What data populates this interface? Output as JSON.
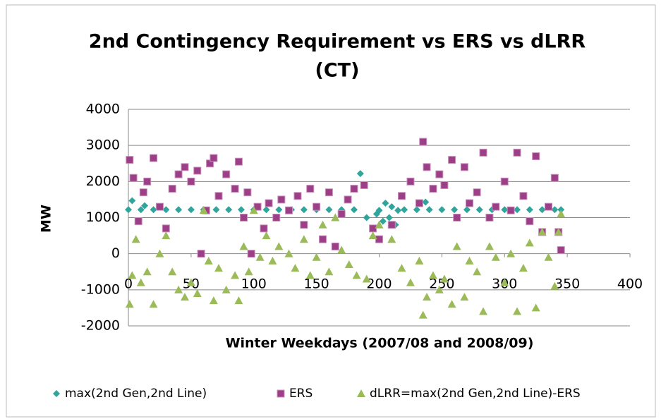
{
  "chart_data": {
    "type": "scatter",
    "title": "2nd Contingency Requirement vs ERS vs dLRR",
    "subtitle": "(CT)",
    "x_label": "Winter Weekdays (2007/08 and 2008/09)",
    "y_label": "MW",
    "xlim": [
      0,
      400
    ],
    "xticks": [
      0,
      50,
      100,
      150,
      200,
      250,
      300,
      350,
      400
    ],
    "ylim": [
      -2000,
      4000
    ],
    "yticks": [
      -2000,
      -1000,
      0,
      1000,
      2000,
      3000,
      4000
    ],
    "grid": true,
    "legend": "bottom",
    "series": [
      {
        "name": "max(2nd Gen,2nd Line)",
        "color": "#2fa59c",
        "marker": "diamond",
        "x": [
          0,
          3,
          10,
          13,
          20,
          30,
          40,
          50,
          60,
          70,
          80,
          90,
          100,
          110,
          120,
          130,
          140,
          150,
          160,
          170,
          180,
          185,
          190,
          195,
          198,
          200,
          203,
          205,
          208,
          210,
          213,
          215,
          220,
          230,
          237,
          240,
          250,
          260,
          270,
          280,
          290,
          300,
          310,
          320,
          330,
          340,
          345
        ],
        "values": [
          1220,
          1470,
          1220,
          1330,
          1220,
          1220,
          1220,
          1220,
          1220,
          1220,
          1220,
          1220,
          1220,
          1220,
          1220,
          1220,
          1220,
          1220,
          1220,
          1220,
          1220,
          2220,
          1000,
          700,
          1100,
          1200,
          900,
          1400,
          1000,
          1300,
          800,
          1200,
          1220,
          1220,
          1430,
          1220,
          1220,
          1220,
          1220,
          1220,
          1220,
          1220,
          1220,
          1220,
          1220,
          1220,
          1220
        ]
      },
      {
        "name": "ERS",
        "color": "#9c3f86",
        "marker": "square",
        "x": [
          1,
          4,
          8,
          12,
          15,
          20,
          25,
          30,
          35,
          40,
          45,
          50,
          55,
          58,
          62,
          65,
          68,
          72,
          78,
          85,
          88,
          92,
          95,
          98,
          103,
          108,
          112,
          118,
          122,
          128,
          135,
          140,
          145,
          150,
          155,
          160,
          165,
          170,
          175,
          180,
          188,
          195,
          200,
          210,
          218,
          225,
          232,
          235,
          238,
          243,
          248,
          252,
          258,
          262,
          268,
          272,
          278,
          283,
          288,
          293,
          300,
          305,
          310,
          315,
          320,
          325,
          330,
          335,
          340,
          343,
          345
        ],
        "values": [
          2600,
          2100,
          900,
          1700,
          2000,
          2650,
          1300,
          700,
          1800,
          2200,
          2400,
          2000,
          2300,
          0,
          1200,
          2500,
          2650,
          1600,
          2200,
          1800,
          2550,
          1000,
          1700,
          0,
          1300,
          700,
          1400,
          1000,
          1500,
          1200,
          1600,
          800,
          1800,
          1300,
          400,
          1700,
          200,
          1100,
          1500,
          1800,
          1900,
          700,
          400,
          800,
          1600,
          2000,
          1400,
          3100,
          2400,
          1800,
          2200,
          1900,
          2600,
          1000,
          2400,
          1400,
          1700,
          2800,
          1000,
          1300,
          2000,
          1200,
          2800,
          1600,
          900,
          2700,
          600,
          1300,
          2100,
          600,
          100
        ]
      },
      {
        "name": "dLRR=max(2nd Gen,2nd Line)-ERS",
        "color": "#9bbb59",
        "marker": "triangle",
        "x": [
          1,
          3,
          6,
          10,
          15,
          20,
          25,
          30,
          35,
          40,
          45,
          50,
          55,
          60,
          64,
          68,
          72,
          78,
          85,
          88,
          92,
          96,
          100,
          105,
          110,
          115,
          120,
          128,
          133,
          140,
          145,
          150,
          155,
          160,
          165,
          170,
          176,
          182,
          190,
          195,
          200,
          210,
          218,
          225,
          232,
          235,
          238,
          243,
          248,
          252,
          258,
          262,
          268,
          272,
          278,
          283,
          288,
          293,
          300,
          305,
          310,
          315,
          320,
          325,
          330,
          335,
          340,
          343,
          345
        ],
        "values": [
          -1400,
          -600,
          400,
          -800,
          -500,
          -1400,
          0,
          500,
          -500,
          -1000,
          -1200,
          -800,
          -1100,
          1200,
          -200,
          -1300,
          -400,
          -1000,
          -600,
          -1300,
          200,
          -500,
          1200,
          -100,
          500,
          -200,
          200,
          0,
          -400,
          400,
          -600,
          -100,
          800,
          -500,
          1000,
          100,
          -300,
          -600,
          -700,
          500,
          800,
          400,
          -400,
          -800,
          -200,
          -1700,
          -1200,
          -600,
          -1000,
          -700,
          -1400,
          200,
          -1200,
          -200,
          -500,
          -1600,
          200,
          -100,
          -800,
          0,
          -1600,
          -400,
          300,
          -1500,
          600,
          -100,
          -900,
          600,
          1100
        ]
      }
    ]
  }
}
